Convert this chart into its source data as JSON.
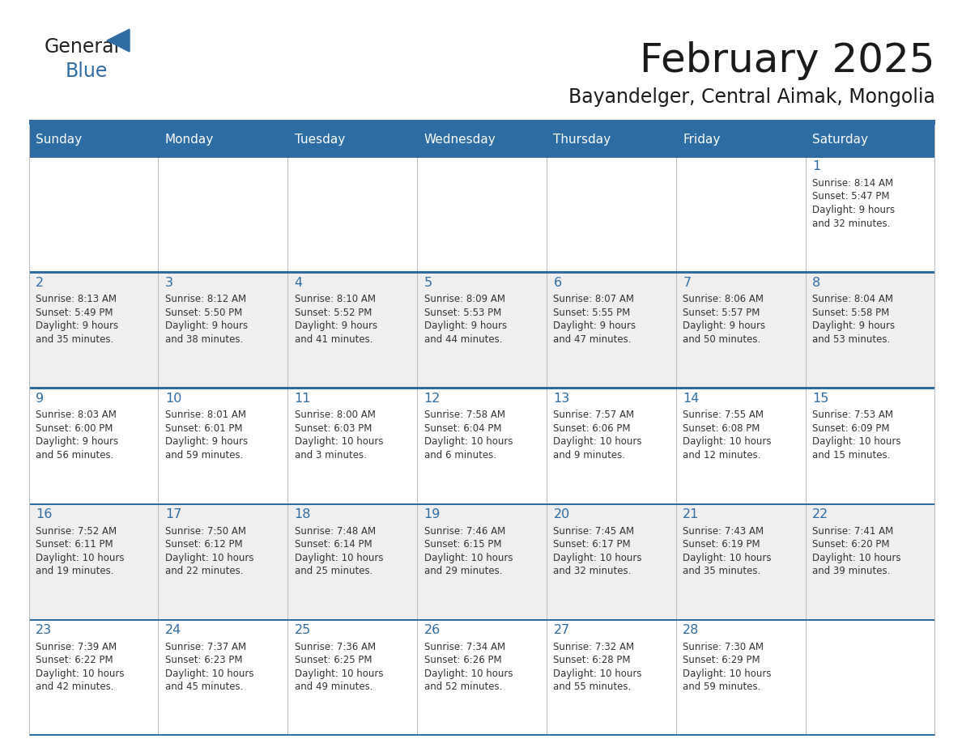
{
  "title": "February 2025",
  "subtitle": "Bayandelger, Central Aimak, Mongolia",
  "header_bg_color": "#2E6DA4",
  "header_text_color": "#FFFFFF",
  "row_colors": [
    "#FFFFFF",
    "#EFEFEF",
    "#FFFFFF",
    "#EFEFEF",
    "#FFFFFF"
  ],
  "border_color": "#2E6DA4",
  "title_color": "#1a1a1a",
  "subtitle_color": "#1a1a1a",
  "day_number_color": "#2E6DA4",
  "cell_text_color": "#333333",
  "days_of_week": [
    "Sunday",
    "Monday",
    "Tuesday",
    "Wednesday",
    "Thursday",
    "Friday",
    "Saturday"
  ],
  "weeks": [
    [
      {
        "day": "",
        "info": ""
      },
      {
        "day": "",
        "info": ""
      },
      {
        "day": "",
        "info": ""
      },
      {
        "day": "",
        "info": ""
      },
      {
        "day": "",
        "info": ""
      },
      {
        "day": "",
        "info": ""
      },
      {
        "day": "1",
        "info": "Sunrise: 8:14 AM\nSunset: 5:47 PM\nDaylight: 9 hours\nand 32 minutes."
      }
    ],
    [
      {
        "day": "2",
        "info": "Sunrise: 8:13 AM\nSunset: 5:49 PM\nDaylight: 9 hours\nand 35 minutes."
      },
      {
        "day": "3",
        "info": "Sunrise: 8:12 AM\nSunset: 5:50 PM\nDaylight: 9 hours\nand 38 minutes."
      },
      {
        "day": "4",
        "info": "Sunrise: 8:10 AM\nSunset: 5:52 PM\nDaylight: 9 hours\nand 41 minutes."
      },
      {
        "day": "5",
        "info": "Sunrise: 8:09 AM\nSunset: 5:53 PM\nDaylight: 9 hours\nand 44 minutes."
      },
      {
        "day": "6",
        "info": "Sunrise: 8:07 AM\nSunset: 5:55 PM\nDaylight: 9 hours\nand 47 minutes."
      },
      {
        "day": "7",
        "info": "Sunrise: 8:06 AM\nSunset: 5:57 PM\nDaylight: 9 hours\nand 50 minutes."
      },
      {
        "day": "8",
        "info": "Sunrise: 8:04 AM\nSunset: 5:58 PM\nDaylight: 9 hours\nand 53 minutes."
      }
    ],
    [
      {
        "day": "9",
        "info": "Sunrise: 8:03 AM\nSunset: 6:00 PM\nDaylight: 9 hours\nand 56 minutes."
      },
      {
        "day": "10",
        "info": "Sunrise: 8:01 AM\nSunset: 6:01 PM\nDaylight: 9 hours\nand 59 minutes."
      },
      {
        "day": "11",
        "info": "Sunrise: 8:00 AM\nSunset: 6:03 PM\nDaylight: 10 hours\nand 3 minutes."
      },
      {
        "day": "12",
        "info": "Sunrise: 7:58 AM\nSunset: 6:04 PM\nDaylight: 10 hours\nand 6 minutes."
      },
      {
        "day": "13",
        "info": "Sunrise: 7:57 AM\nSunset: 6:06 PM\nDaylight: 10 hours\nand 9 minutes."
      },
      {
        "day": "14",
        "info": "Sunrise: 7:55 AM\nSunset: 6:08 PM\nDaylight: 10 hours\nand 12 minutes."
      },
      {
        "day": "15",
        "info": "Sunrise: 7:53 AM\nSunset: 6:09 PM\nDaylight: 10 hours\nand 15 minutes."
      }
    ],
    [
      {
        "day": "16",
        "info": "Sunrise: 7:52 AM\nSunset: 6:11 PM\nDaylight: 10 hours\nand 19 minutes."
      },
      {
        "day": "17",
        "info": "Sunrise: 7:50 AM\nSunset: 6:12 PM\nDaylight: 10 hours\nand 22 minutes."
      },
      {
        "day": "18",
        "info": "Sunrise: 7:48 AM\nSunset: 6:14 PM\nDaylight: 10 hours\nand 25 minutes."
      },
      {
        "day": "19",
        "info": "Sunrise: 7:46 AM\nSunset: 6:15 PM\nDaylight: 10 hours\nand 29 minutes."
      },
      {
        "day": "20",
        "info": "Sunrise: 7:45 AM\nSunset: 6:17 PM\nDaylight: 10 hours\nand 32 minutes."
      },
      {
        "day": "21",
        "info": "Sunrise: 7:43 AM\nSunset: 6:19 PM\nDaylight: 10 hours\nand 35 minutes."
      },
      {
        "day": "22",
        "info": "Sunrise: 7:41 AM\nSunset: 6:20 PM\nDaylight: 10 hours\nand 39 minutes."
      }
    ],
    [
      {
        "day": "23",
        "info": "Sunrise: 7:39 AM\nSunset: 6:22 PM\nDaylight: 10 hours\nand 42 minutes."
      },
      {
        "day": "24",
        "info": "Sunrise: 7:37 AM\nSunset: 6:23 PM\nDaylight: 10 hours\nand 45 minutes."
      },
      {
        "day": "25",
        "info": "Sunrise: 7:36 AM\nSunset: 6:25 PM\nDaylight: 10 hours\nand 49 minutes."
      },
      {
        "day": "26",
        "info": "Sunrise: 7:34 AM\nSunset: 6:26 PM\nDaylight: 10 hours\nand 52 minutes."
      },
      {
        "day": "27",
        "info": "Sunrise: 7:32 AM\nSunset: 6:28 PM\nDaylight: 10 hours\nand 55 minutes."
      },
      {
        "day": "28",
        "info": "Sunrise: 7:30 AM\nSunset: 6:29 PM\nDaylight: 10 hours\nand 59 minutes."
      },
      {
        "day": "",
        "info": ""
      }
    ]
  ]
}
